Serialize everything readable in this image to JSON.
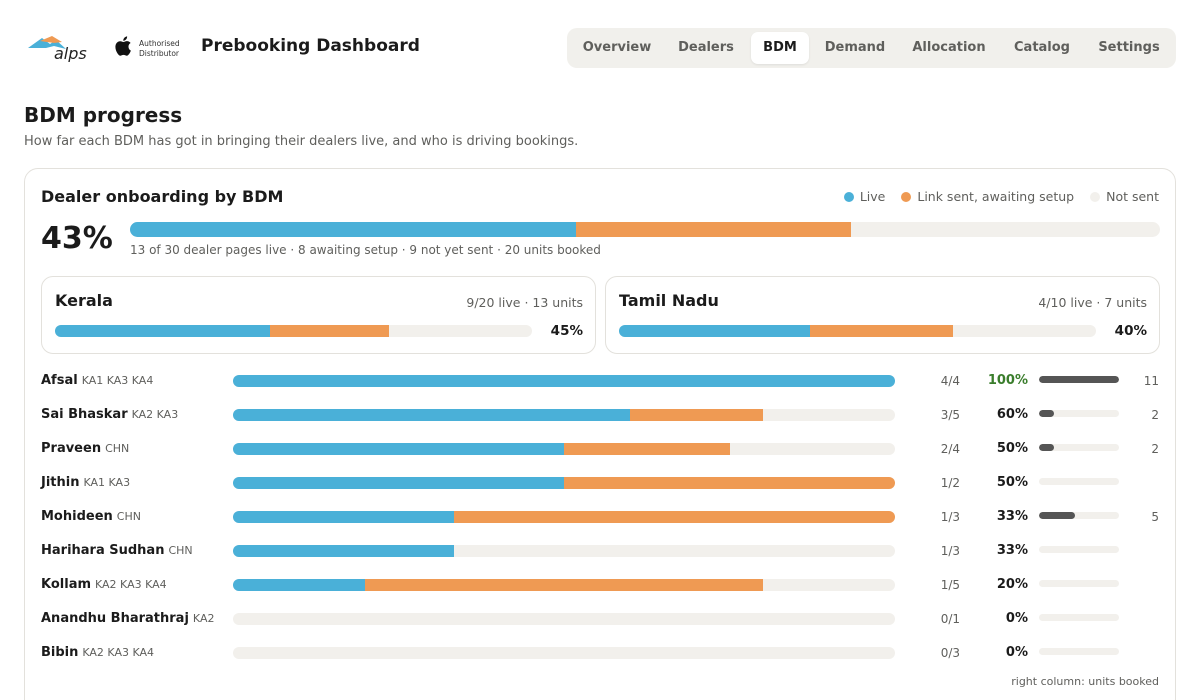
{
  "header": {
    "logo_text": "alps",
    "apple_badge": {
      "icon": "apple-icon",
      "line1": "Authorised",
      "line2": "Distributor"
    },
    "title": "Prebooking Dashboard",
    "nav": [
      {
        "label": "Overview",
        "active": false
      },
      {
        "label": "Dealers",
        "active": false
      },
      {
        "label": "BDM",
        "active": true
      },
      {
        "label": "Demand",
        "active": false
      },
      {
        "label": "Allocation",
        "active": false
      },
      {
        "label": "Catalog",
        "active": false
      },
      {
        "label": "Settings",
        "active": false
      }
    ]
  },
  "page": {
    "title": "BDM progress",
    "subtitle": "How far each BDM has got in bringing their dealers live, and who is driving bookings."
  },
  "colors": {
    "live": "#4ab0d8",
    "sent": "#ef9a53",
    "not_sent": "#f2f0ec",
    "units": "#555555",
    "full": "#3a7d2c"
  },
  "onboarding": {
    "title": "Dealer onboarding by BDM",
    "legend": {
      "live": "Live",
      "sent": "Link sent, awaiting setup",
      "not_sent": "Not sent"
    },
    "overall": {
      "pct_label": "43%",
      "live": 13,
      "sent": 8,
      "not_sent": 9,
      "total": 30,
      "summary": "13 of 30 dealer pages live · 8 awaiting setup · 9 not yet sent · 20 units booked"
    },
    "regions": [
      {
        "name": "Kerala",
        "meta": "9/20 live · 13 units",
        "pct_label": "45%",
        "live": 9,
        "sent": 5,
        "total": 20
      },
      {
        "name": "Tamil Nadu",
        "meta": "4/10 live · 7 units",
        "pct_label": "40%",
        "live": 4,
        "sent": 3,
        "total": 10
      }
    ],
    "bdms": [
      {
        "name": "Afsal",
        "codes": "KA1 KA3 KA4",
        "live": 4,
        "sent": 0,
        "total": 4,
        "fraction": "4/4",
        "pct_label": "100%",
        "units": 11,
        "units_label": "11"
      },
      {
        "name": "Sai Bhaskar",
        "codes": "KA2 KA3",
        "live": 3,
        "sent": 1,
        "total": 5,
        "fraction": "3/5",
        "pct_label": "60%",
        "units": 2,
        "units_label": "2"
      },
      {
        "name": "Praveen",
        "codes": "CHN",
        "live": 2,
        "sent": 1,
        "total": 4,
        "fraction": "2/4",
        "pct_label": "50%",
        "units": 2,
        "units_label": "2"
      },
      {
        "name": "Jithin",
        "codes": "KA1 KA3",
        "live": 1,
        "sent": 1,
        "total": 2,
        "fraction": "1/2",
        "pct_label": "50%",
        "units": 0,
        "units_label": ""
      },
      {
        "name": "Mohideen",
        "codes": "CHN",
        "live": 1,
        "sent": 2,
        "total": 3,
        "fraction": "1/3",
        "pct_label": "33%",
        "units": 5,
        "units_label": "5"
      },
      {
        "name": "Harihara Sudhan",
        "codes": "CHN",
        "live": 1,
        "sent": 0,
        "total": 3,
        "fraction": "1/3",
        "pct_label": "33%",
        "units": 0,
        "units_label": ""
      },
      {
        "name": "Kollam",
        "codes": "KA2 KA3 KA4",
        "live": 1,
        "sent": 3,
        "total": 5,
        "fraction": "1/5",
        "pct_label": "20%",
        "units": 0,
        "units_label": ""
      },
      {
        "name": "Anandhu Bharathraj",
        "codes": "KA2",
        "live": 0,
        "sent": 0,
        "total": 1,
        "fraction": "0/1",
        "pct_label": "0%",
        "units": 0,
        "units_label": ""
      },
      {
        "name": "Bibin",
        "codes": "KA2 KA3 KA4",
        "live": 0,
        "sent": 0,
        "total": 3,
        "fraction": "0/3",
        "pct_label": "0%",
        "units": 0,
        "units_label": ""
      }
    ],
    "units_max": 11,
    "footnote": "right column: units booked"
  }
}
